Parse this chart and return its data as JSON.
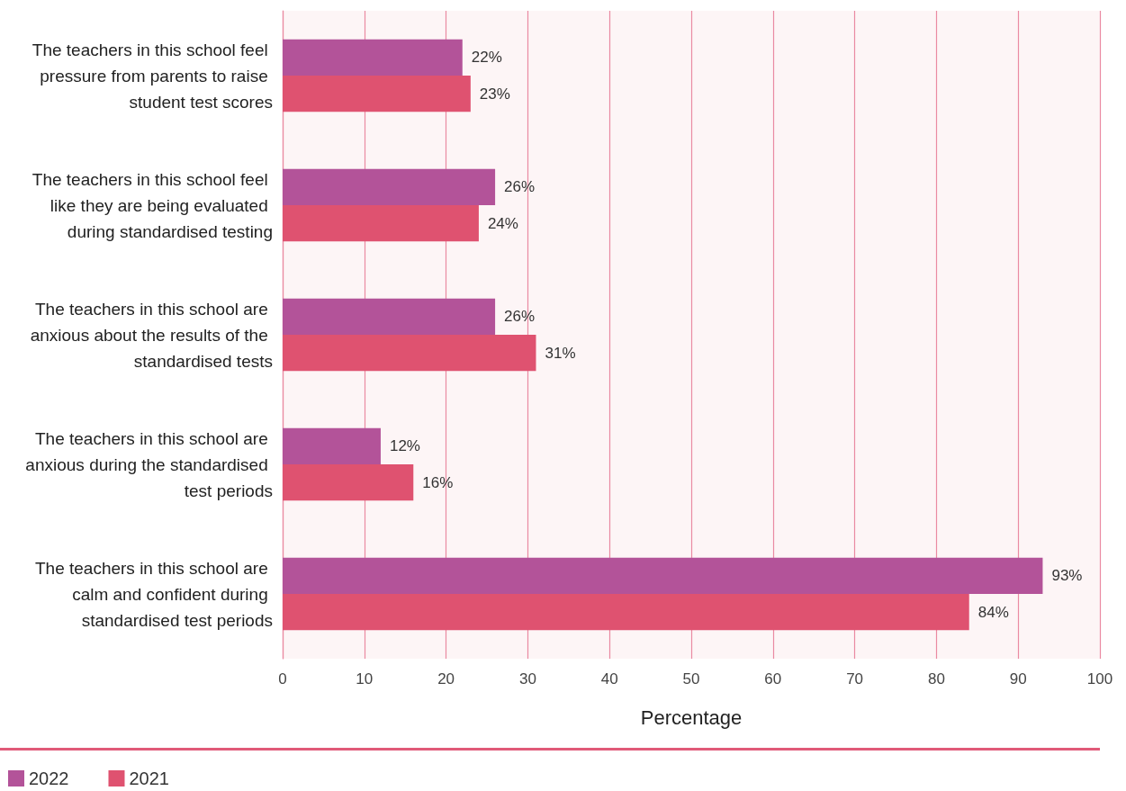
{
  "chart_data": {
    "type": "bar",
    "orientation": "horizontal",
    "categories": [
      "The teachers in this school feel pressure from parents to raise student test scores",
      "The teachers in this school feel like they are being evaluated during standardised testing",
      "The teachers in this school are anxious about the results of the standardised tests",
      "The teachers in this school are anxious during the standardised test periods",
      "The teachers in this school are calm and confident during standardised test periods"
    ],
    "series": [
      {
        "name": "2022",
        "color": "#b35399",
        "values": [
          22,
          26,
          26,
          12,
          93
        ],
        "value_labels": [
          "22%",
          "26%",
          "26%",
          "12%",
          "93%"
        ]
      },
      {
        "name": "2021",
        "color": "#df5270",
        "values": [
          23,
          24,
          31,
          16,
          84
        ],
        "value_labels": [
          "23%",
          "24%",
          "31%",
          "16%",
          "84%"
        ]
      }
    ],
    "xlabel": "Percentage",
    "xlim": [
      0,
      100
    ],
    "xticks": [
      0,
      10,
      20,
      30,
      40,
      50,
      60,
      70,
      80,
      90,
      100
    ],
    "grid": "x",
    "legend": "bottom left"
  }
}
